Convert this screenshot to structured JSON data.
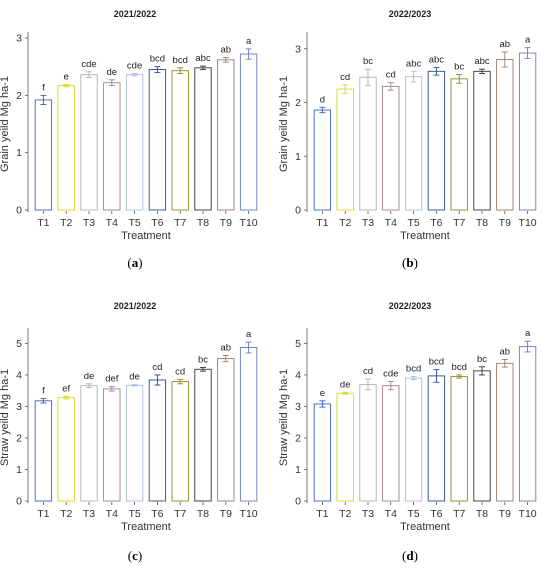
{
  "chart_data": [
    {
      "type": "bar",
      "title": "2021/2022",
      "panel_label": [
        "(",
        "a",
        ")"
      ],
      "xlabel": "Treatment",
      "ylabel": "Grain yeild  Mg ha-1",
      "ylim": [
        0,
        3
      ],
      "yticks": [
        0,
        1,
        2,
        3
      ],
      "grid": false,
      "categories": [
        "T1",
        "T2",
        "T3",
        "T4",
        "T5",
        "T6",
        "T7",
        "T8",
        "T9",
        "T10"
      ],
      "values": [
        1.92,
        2.17,
        2.36,
        2.22,
        2.36,
        2.45,
        2.43,
        2.48,
        2.62,
        2.72
      ],
      "errors": [
        0.08,
        0.02,
        0.05,
        0.05,
        0.02,
        0.05,
        0.05,
        0.03,
        0.04,
        0.09
      ],
      "letters": [
        "f",
        "e",
        "cde",
        "de",
        "cde",
        "bcd",
        "bcd",
        "abc",
        "ab",
        "a"
      ],
      "colors": [
        "#3b5fc0",
        "#d8d820",
        "#b0b0b0",
        "#a08080",
        "#a8bce0",
        "#2a4a8a",
        "#8a8a20",
        "#333333",
        "#9a7a6a",
        "#6a7ac0"
      ]
    },
    {
      "type": "bar",
      "title": "2022/2023",
      "panel_label": [
        "(",
        "b",
        ")"
      ],
      "xlabel": "Treatment",
      "ylabel": "Grain yeild  Mg ha-1",
      "ylim": [
        0,
        3.2
      ],
      "yticks": [
        0,
        1,
        2,
        3
      ],
      "grid": false,
      "categories": [
        "T1",
        "T2",
        "T3",
        "T4",
        "T5",
        "T6",
        "T7",
        "T8",
        "T9",
        "T10"
      ],
      "values": [
        1.86,
        2.25,
        2.47,
        2.3,
        2.48,
        2.58,
        2.44,
        2.58,
        2.8,
        2.92
      ],
      "errors": [
        0.05,
        0.08,
        0.15,
        0.07,
        0.1,
        0.07,
        0.08,
        0.04,
        0.14,
        0.1
      ],
      "letters": [
        "d",
        "cd",
        "bc",
        "cd",
        "abc",
        "abc",
        "bc",
        "abc",
        "ab",
        "a"
      ],
      "colors": [
        "#3b5fc0",
        "#d8d820",
        "#b0b0b0",
        "#a08080",
        "#a8bce0",
        "#2a4a8a",
        "#8a8a20",
        "#333333",
        "#9a7a6a",
        "#6a7ac0"
      ]
    },
    {
      "type": "bar",
      "title": "2021/2022",
      "panel_label": [
        "(",
        "c",
        ")"
      ],
      "xlabel": "Treatment",
      "ylabel": "Straw yeild  Mg ha-1",
      "ylim": [
        0,
        5.3
      ],
      "yticks": [
        0,
        1,
        2,
        3,
        4,
        5
      ],
      "grid": false,
      "categories": [
        "T1",
        "T2",
        "T3",
        "T4",
        "T5",
        "T6",
        "T7",
        "T8",
        "T9",
        "T10"
      ],
      "values": [
        3.18,
        3.28,
        3.66,
        3.56,
        3.67,
        3.84,
        3.79,
        4.18,
        4.52,
        4.87
      ],
      "errors": [
        0.07,
        0.04,
        0.06,
        0.07,
        0.02,
        0.16,
        0.07,
        0.06,
        0.1,
        0.17
      ],
      "letters": [
        "f",
        "ef",
        "de",
        "def",
        "de",
        "cd",
        "cd",
        "bc",
        "ab",
        "a"
      ],
      "colors": [
        "#3b5fc0",
        "#d8d820",
        "#b0b0b0",
        "#a08080",
        "#a8bce0",
        "#2a4a8a",
        "#8a8a20",
        "#333333",
        "#9a7a6a",
        "#6a7ac0"
      ]
    },
    {
      "type": "bar",
      "title": "2022/2023",
      "panel_label": [
        "(",
        "d",
        ")"
      ],
      "xlabel": "Treatment",
      "ylabel": "Straw yeild  Mg ha-1",
      "ylim": [
        0,
        5.3
      ],
      "yticks": [
        0,
        1,
        2,
        3,
        4,
        5
      ],
      "grid": false,
      "categories": [
        "T1",
        "T2",
        "T3",
        "T4",
        "T5",
        "T6",
        "T7",
        "T8",
        "T9",
        "T10"
      ],
      "values": [
        3.08,
        3.42,
        3.7,
        3.66,
        3.9,
        3.97,
        3.95,
        4.13,
        4.37,
        4.9
      ],
      "errors": [
        0.1,
        0.03,
        0.17,
        0.13,
        0.05,
        0.2,
        0.05,
        0.13,
        0.12,
        0.17
      ],
      "letters": [
        "e",
        "de",
        "cd",
        "cde",
        "bcd",
        "bcd",
        "bcd",
        "bc",
        "ab",
        "a"
      ],
      "colors": [
        "#3b5fc0",
        "#d8d820",
        "#b0b0b0",
        "#a08080",
        "#a8bce0",
        "#2a4a8a",
        "#8a8a20",
        "#333333",
        "#9a7a6a",
        "#6a7ac0"
      ]
    }
  ]
}
